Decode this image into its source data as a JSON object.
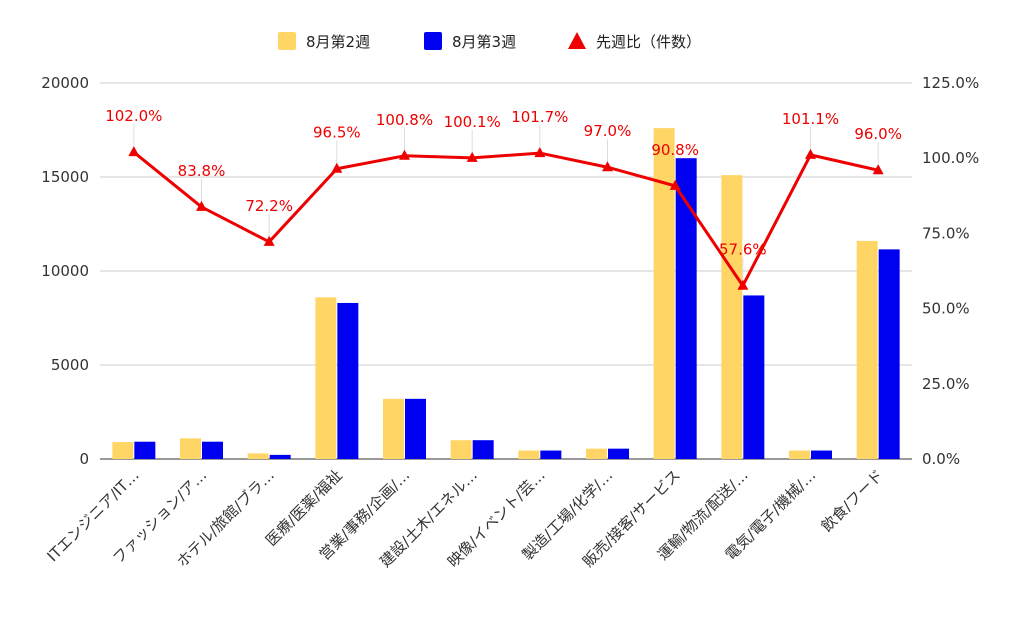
{
  "chart_data": {
    "type": "bar",
    "categories": [
      "ITエンジニア/IT…",
      "ファッション/ア…",
      "ホテル/旅館/ブラ…",
      "医療/医薬/福祉",
      "営業/事務/企画/…",
      "建設/土木/エネル…",
      "映像/イベント/芸…",
      "製造/工場/化学/…",
      "販売/接客/サービス",
      "運輸/物流/配送/…",
      "電気/電子/機械/…",
      "飲食/フード"
    ],
    "series": [
      {
        "name": "8月第2週",
        "color": "#FFD666",
        "axis": "left",
        "values": [
          900,
          1100,
          300,
          8600,
          3200,
          1000,
          450,
          550,
          17600,
          15100,
          450,
          11600
        ]
      },
      {
        "name": "8月第3週",
        "color": "#0000F0",
        "axis": "left",
        "values": [
          920,
          920,
          220,
          8300,
          3200,
          1000,
          450,
          550,
          16000,
          8700,
          450,
          11150
        ]
      },
      {
        "name": "先週比（件数）",
        "color": "#EE0000",
        "axis": "right",
        "type": "line",
        "values": [
          102.0,
          83.8,
          72.2,
          96.5,
          100.8,
          100.1,
          101.7,
          97.0,
          90.8,
          57.6,
          101.1,
          96.0
        ],
        "labels": [
          "102.0%",
          "83.8%",
          "72.2%",
          "96.5%",
          "100.8%",
          "100.1%",
          "101.7%",
          "97.0%",
          "90.8%",
          "57.6%",
          "101.1%",
          "96.0%"
        ]
      }
    ],
    "y_left": {
      "lim": [
        0,
        20000
      ],
      "ticks": [
        "0",
        "5000",
        "10000",
        "15000",
        "20000"
      ]
    },
    "y_right": {
      "lim": [
        0,
        125
      ],
      "ticks": [
        "0.0%",
        "25.0%",
        "50.0%",
        "75.0%",
        "100.0%",
        "125.0%"
      ]
    },
    "grid": true,
    "legend_position": "top-center"
  }
}
